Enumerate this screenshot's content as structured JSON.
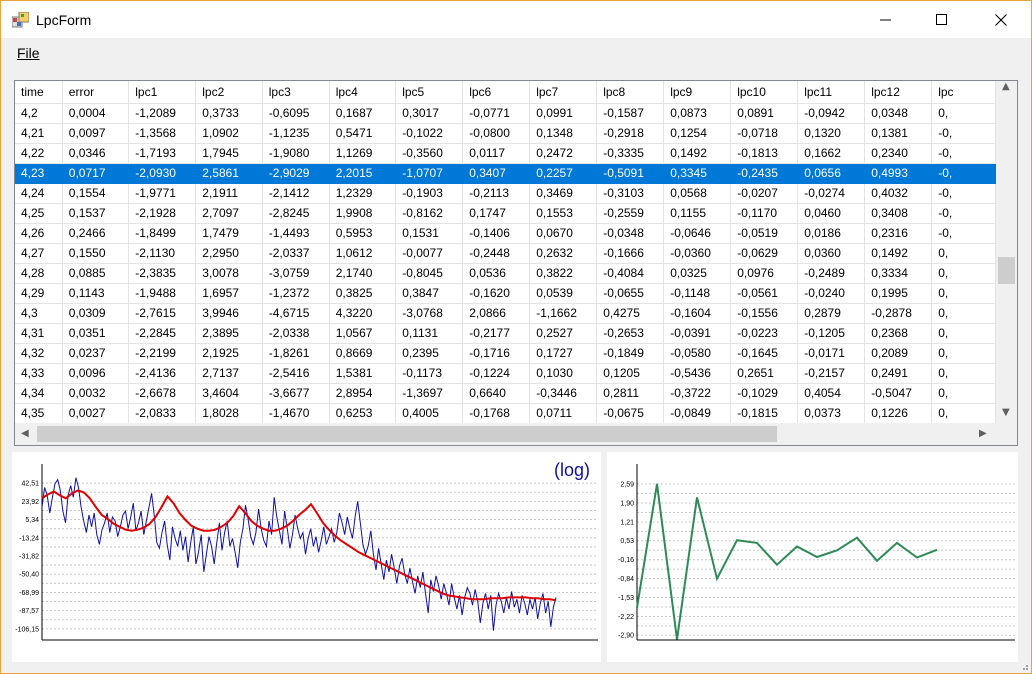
{
  "window": {
    "title": "LpcForm"
  },
  "menu": {
    "file_label": "File"
  },
  "table": {
    "columns": [
      "time",
      "error",
      "lpc1",
      "lpc2",
      "lpc3",
      "lpc4",
      "lpc5",
      "lpc6",
      "lpc7",
      "lpc8",
      "lpc9",
      "lpc10",
      "lpc11",
      "lpc12",
      "lpc"
    ],
    "selected_row": 3,
    "rows": [
      [
        "4,2",
        "0,0004",
        "-1,2089",
        "0,3733",
        "-0,6095",
        "0,1687",
        "0,3017",
        "-0,0771",
        "0,0991",
        "-0,1587",
        "0,0873",
        "0,0891",
        "-0,0942",
        "0,0348",
        "0,"
      ],
      [
        "4,21",
        "0,0097",
        "-1,3568",
        "1,0902",
        "-1,1235",
        "0,5471",
        "-0,1022",
        "-0,0800",
        "0,1348",
        "-0,2918",
        "0,1254",
        "-0,0718",
        "0,1320",
        "0,1381",
        "-0,"
      ],
      [
        "4,22",
        "0,0346",
        "-1,7193",
        "1,7945",
        "-1,9080",
        "1,1269",
        "-0,3560",
        "0,0117",
        "0,2472",
        "-0,3335",
        "0,1492",
        "-0,1813",
        "0,1662",
        "0,2340",
        "-0,"
      ],
      [
        "4,23",
        "0,0717",
        "-2,0930",
        "2,5861",
        "-2,9029",
        "2,2015",
        "-1,0707",
        "0,3407",
        "0,2257",
        "-0,5091",
        "0,3345",
        "-0,2435",
        "0,0656",
        "0,4993",
        "-0,"
      ],
      [
        "4,24",
        "0,1554",
        "-1,9771",
        "2,1911",
        "-2,1412",
        "1,2329",
        "-0,1903",
        "-0,2113",
        "0,3469",
        "-0,3103",
        "0,0568",
        "-0,0207",
        "-0,0274",
        "0,4032",
        "-0,"
      ],
      [
        "4,25",
        "0,1537",
        "-2,1928",
        "2,7097",
        "-2,8245",
        "1,9908",
        "-0,8162",
        "0,1747",
        "0,1553",
        "-0,2559",
        "0,1155",
        "-0,1170",
        "0,0460",
        "0,3408",
        "-0,"
      ],
      [
        "4,26",
        "0,2466",
        "-1,8499",
        "1,7479",
        "-1,4493",
        "0,5953",
        "0,1531",
        "-0,1406",
        "0,0670",
        "-0,0348",
        "-0,0646",
        "-0,0519",
        "0,0186",
        "0,2316",
        "-0,"
      ],
      [
        "4,27",
        "0,1550",
        "-2,1130",
        "2,2950",
        "-2,0337",
        "1,0612",
        "-0,0077",
        "-0,2448",
        "0,2632",
        "-0,1666",
        "-0,0360",
        "-0,0629",
        "0,0360",
        "0,1492",
        "0,"
      ],
      [
        "4,28",
        "0,0885",
        "-2,3835",
        "3,0078",
        "-3,0759",
        "2,1740",
        "-0,8045",
        "0,0536",
        "0,3822",
        "-0,4084",
        "0,0325",
        "0,0976",
        "-0,2489",
        "0,3334",
        "0,"
      ],
      [
        "4,29",
        "0,1143",
        "-1,9488",
        "1,6957",
        "-1,2372",
        "0,3825",
        "0,3847",
        "-0,1620",
        "0,0539",
        "-0,0655",
        "-0,1148",
        "-0,0561",
        "-0,0240",
        "0,1995",
        "0,"
      ],
      [
        "4,3",
        "0,0309",
        "-2,7615",
        "3,9946",
        "-4,6715",
        "4,3220",
        "-3,0768",
        "2,0866",
        "-1,1662",
        "0,4275",
        "-0,1604",
        "-0,1556",
        "0,2879",
        "-0,2878",
        "0,"
      ],
      [
        "4,31",
        "0,0351",
        "-2,2845",
        "2,3895",
        "-2,0338",
        "1,0567",
        "0,1131",
        "-0,2177",
        "0,2527",
        "-0,2653",
        "-0,0391",
        "-0,0223",
        "-0,1205",
        "0,2368",
        "0,"
      ],
      [
        "4,32",
        "0,0237",
        "-2,2199",
        "2,1925",
        "-1,8261",
        "0,8669",
        "0,2395",
        "-0,1716",
        "0,1727",
        "-0,1849",
        "-0,0580",
        "-0,1645",
        "-0,0171",
        "0,2089",
        "0,"
      ],
      [
        "4,33",
        "0,0096",
        "-2,4136",
        "2,7137",
        "-2,5416",
        "1,5381",
        "-0,1173",
        "-0,1224",
        "0,1030",
        "0,1205",
        "-0,5436",
        "0,2651",
        "-0,2157",
        "0,2491",
        "0,"
      ],
      [
        "4,34",
        "0,0032",
        "-2,6678",
        "3,4604",
        "-3,6677",
        "2,8954",
        "-1,3697",
        "0,6640",
        "-0,3446",
        "0,2811",
        "-0,3722",
        "-0,1029",
        "0,4054",
        "-0,5047",
        "0,"
      ],
      [
        "4,35",
        "0,0027",
        "-2,0833",
        "1,8028",
        "-1,4670",
        "0,6253",
        "0,4005",
        "-0,1768",
        "0,0711",
        "-0,0675",
        "-0,0849",
        "-0,1815",
        "0,0373",
        "0,1226",
        "0,"
      ]
    ]
  },
  "chart_data": [
    {
      "type": "line",
      "annotation": "(log)",
      "yticks": [
        "42,51",
        "23,92",
        "5,34",
        "-13,24",
        "-31,82",
        "-50,40",
        "-68,99",
        "-87,57",
        "-106,15"
      ],
      "ylim": [
        -115.44,
        51.8
      ],
      "grid": true,
      "series": [
        {
          "color": "#1010a0",
          "values": [
            18,
            38,
            30,
            12,
            28,
            42,
            46,
            35,
            14,
            2,
            30,
            40,
            28,
            48,
            38,
            18,
            4,
            -8,
            10,
            -2,
            12,
            -10,
            -20,
            -5,
            2,
            12,
            -8,
            8,
            4,
            -12,
            -2,
            10,
            14,
            -4,
            8,
            22,
            -6,
            2,
            14,
            -10,
            4,
            18,
            32,
            10,
            -18,
            -24,
            -8,
            4,
            -20,
            -36,
            -2,
            -14,
            -22,
            -6,
            -26,
            -12,
            -38,
            -18,
            -2,
            -40,
            -28,
            -10,
            -48,
            -30,
            -12,
            -22,
            -40,
            -18,
            2,
            -26,
            -8,
            4,
            -22,
            -14,
            -28,
            -44,
            -18,
            -4,
            20,
            6,
            -12,
            -20,
            -8,
            16,
            -4,
            -16,
            -22,
            4,
            -10,
            28,
            8,
            -6,
            -20,
            14,
            -4,
            -24,
            -10,
            10,
            -4,
            -14,
            -8,
            -30,
            -14,
            -4,
            -22,
            -12,
            -28,
            -16,
            -2,
            -20,
            -12,
            -4,
            -18,
            -8,
            12,
            2,
            -10,
            8,
            -4,
            -14,
            8,
            24,
            2,
            -20,
            -30,
            -22,
            -6,
            -30,
            -46,
            -24,
            -40,
            -56,
            -36,
            -48,
            -30,
            -44,
            -60,
            -42,
            -34,
            -50,
            -60,
            -44,
            -58,
            -70,
            -52,
            -64,
            -48,
            -70,
            -90,
            -56,
            -68,
            -52,
            -62,
            -76,
            -60,
            -70,
            -82,
            -60,
            -74,
            -86,
            -72,
            -92,
            -74,
            -64,
            -70,
            -82,
            -66,
            -78,
            -100,
            -80,
            -70,
            -86,
            -72,
            -108,
            -82,
            -70,
            -78,
            -90,
            -74,
            -86,
            -68,
            -84,
            -76,
            -90,
            -72,
            -80,
            -92,
            -76,
            -86,
            -74,
            -96,
            -80,
            -70,
            -90,
            -78,
            -104,
            -84,
            -74
          ]
        },
        {
          "color": "#e00000",
          "values": [
            27,
            31,
            34,
            30,
            27,
            32,
            35,
            33,
            27,
            18,
            10,
            6,
            1,
            -2,
            -5,
            -6,
            -5,
            -3,
            1,
            8,
            18,
            29,
            22,
            12,
            5,
            -1,
            -4,
            -6,
            -6,
            -5,
            -2,
            2,
            9,
            19,
            12,
            4,
            -1,
            -4,
            -6,
            -6,
            -4,
            -1,
            4,
            10,
            15,
            21,
            12,
            2,
            -5,
            -11,
            -16,
            -20,
            -24,
            -28,
            -31,
            -34,
            -37,
            -40,
            -43,
            -46,
            -49,
            -52,
            -55,
            -58,
            -61,
            -64,
            -67,
            -70,
            -72,
            -73,
            -74,
            -75,
            -76,
            -76,
            -76,
            -75,
            -75,
            -75,
            -74,
            -74,
            -74,
            -74,
            -75,
            -75,
            -76,
            -76,
            -77
          ]
        }
      ]
    },
    {
      "type": "line",
      "yticks": [
        "2,59",
        "1,90",
        "1,21",
        "0,53",
        "-0,16",
        "-0,84",
        "-1,53",
        "-2,22",
        "-2,90"
      ],
      "ylim": [
        -3.0,
        2.95
      ],
      "grid": true,
      "series": [
        {
          "color": "#2e8b57",
          "values": [
            -1.9,
            2.59,
            -3.05,
            2.1,
            -0.85,
            0.55,
            0.45,
            -0.34,
            0.32,
            -0.06,
            0.18,
            0.64,
            -0.2,
            0.45,
            -0.08,
            0.2
          ]
        }
      ]
    }
  ]
}
